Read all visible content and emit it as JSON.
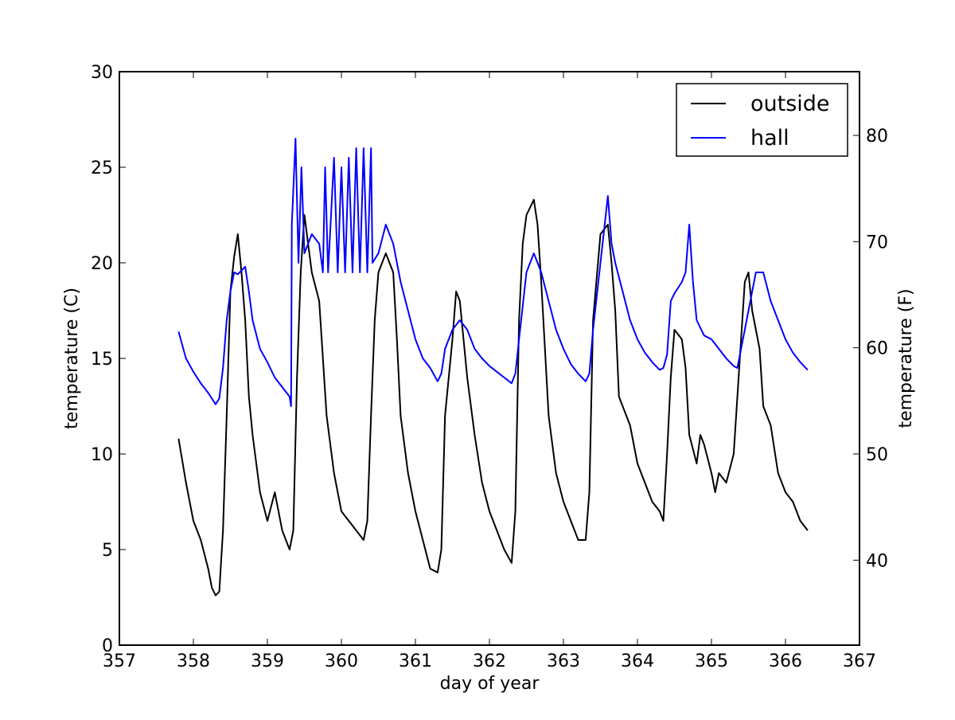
{
  "chart_data": {
    "type": "line",
    "xlabel": "day of year",
    "ylabel": "temperature (C)",
    "y2label": "temperature (F)",
    "xlim": [
      357,
      367
    ],
    "xticks": [
      357,
      358,
      359,
      360,
      361,
      362,
      363,
      364,
      365,
      366,
      367
    ],
    "ylim": [
      0,
      30
    ],
    "yticks": [
      0,
      5,
      10,
      15,
      20,
      25,
      30
    ],
    "y2lim": [
      32,
      86
    ],
    "y2ticks": [
      40,
      50,
      60,
      70,
      80
    ],
    "legend": "upper right",
    "grid": false,
    "series": [
      {
        "name": "outside",
        "color": "#000000",
        "x": [
          357.8,
          357.9,
          358.0,
          358.1,
          358.2,
          358.25,
          358.3,
          358.35,
          358.4,
          358.45,
          358.5,
          358.55,
          358.6,
          358.65,
          358.7,
          358.75,
          358.8,
          358.9,
          359.0,
          359.1,
          359.2,
          359.3,
          359.35,
          359.4,
          359.45,
          359.5,
          359.55,
          359.6,
          359.7,
          359.75,
          359.8,
          359.9,
          360.0,
          360.1,
          360.2,
          360.3,
          360.35,
          360.4,
          360.45,
          360.5,
          360.6,
          360.7,
          360.75,
          360.8,
          360.9,
          361.0,
          361.1,
          361.2,
          361.3,
          361.35,
          361.4,
          361.5,
          361.55,
          361.6,
          361.7,
          361.8,
          361.9,
          362.0,
          362.1,
          362.2,
          362.3,
          362.35,
          362.4,
          362.45,
          362.5,
          362.6,
          362.65,
          362.7,
          362.8,
          362.9,
          363.0,
          363.1,
          363.2,
          363.3,
          363.35,
          363.4,
          363.5,
          363.6,
          363.65,
          363.7,
          363.75,
          363.9,
          364.0,
          364.1,
          364.2,
          364.3,
          364.35,
          364.4,
          364.45,
          364.5,
          364.6,
          364.65,
          364.7,
          364.8,
          364.85,
          364.9,
          365.0,
          365.05,
          365.1,
          365.2,
          365.3,
          365.4,
          365.45,
          365.5,
          365.55,
          365.6,
          365.65,
          365.7,
          365.8,
          365.9,
          366.0,
          366.1,
          366.2,
          366.3
        ],
        "values": [
          10.8,
          8.5,
          6.5,
          5.5,
          4.0,
          3.0,
          2.6,
          2.8,
          6.0,
          12,
          18.5,
          20.3,
          21.5,
          19.5,
          17,
          13,
          11,
          8,
          6.5,
          8,
          6,
          5,
          6,
          14,
          19.5,
          22.5,
          21,
          19.5,
          18,
          15,
          12,
          9,
          7,
          6.5,
          6,
          5.5,
          6.5,
          12,
          17,
          19.5,
          20.5,
          19.5,
          16,
          12,
          9,
          7,
          5.5,
          4,
          3.8,
          5,
          12,
          16,
          18.5,
          18,
          14,
          11,
          8.5,
          7,
          6,
          5,
          4.3,
          7,
          17,
          21,
          22.5,
          23.3,
          22,
          19,
          12,
          9,
          7.5,
          6.5,
          5.5,
          5.5,
          8,
          17,
          21.5,
          22,
          20,
          17.5,
          13,
          11.5,
          9.5,
          8.5,
          7.5,
          7,
          6.5,
          10,
          14,
          16.5,
          16,
          14.5,
          11,
          9.5,
          11,
          10.5,
          9,
          8,
          9,
          8.5,
          10,
          16,
          19,
          19.5,
          17.5,
          16.5,
          15.5,
          12.5,
          11.5,
          9,
          8,
          7.5,
          6.5,
          6
        ]
      },
      {
        "name": "hall",
        "color": "#0000ff",
        "x": [
          357.8,
          357.9,
          358.0,
          358.1,
          358.2,
          358.3,
          358.35,
          358.4,
          358.45,
          358.5,
          358.55,
          358.6,
          358.7,
          358.75,
          358.8,
          358.9,
          359.0,
          359.1,
          359.2,
          359.3,
          359.32,
          359.33,
          359.38,
          359.42,
          359.46,
          359.5,
          359.6,
          359.7,
          359.75,
          359.78,
          359.82,
          359.9,
          359.95,
          360.0,
          360.05,
          360.1,
          360.15,
          360.2,
          360.25,
          360.3,
          360.35,
          360.4,
          360.42,
          360.5,
          360.6,
          360.7,
          360.8,
          360.9,
          361.0,
          361.1,
          361.2,
          361.3,
          361.35,
          361.4,
          361.5,
          361.6,
          361.7,
          361.8,
          361.9,
          362.0,
          362.1,
          362.2,
          362.3,
          362.35,
          362.4,
          362.5,
          362.6,
          362.7,
          362.8,
          362.9,
          363.0,
          363.1,
          363.2,
          363.3,
          363.35,
          363.4,
          363.5,
          363.6,
          363.65,
          363.7,
          363.8,
          363.9,
          364.0,
          364.1,
          364.2,
          364.3,
          364.35,
          364.4,
          364.45,
          364.5,
          364.6,
          364.65,
          364.7,
          364.75,
          364.8,
          364.9,
          365.0,
          365.1,
          365.2,
          365.3,
          365.35,
          365.4,
          365.5,
          365.6,
          365.7,
          365.8,
          365.9,
          366.0,
          366.1,
          366.2,
          366.3
        ],
        "values": [
          16.4,
          15,
          14.3,
          13.7,
          13.2,
          12.6,
          12.9,
          14.5,
          17,
          18.5,
          19.5,
          19.4,
          19.8,
          18.5,
          17,
          15.5,
          14.8,
          14,
          13.5,
          13,
          12.5,
          22,
          26.5,
          20,
          25,
          20.5,
          21.5,
          21,
          19.5,
          25,
          19.5,
          25.5,
          19.5,
          25,
          19.5,
          25.5,
          19.5,
          26,
          19.5,
          26,
          19.5,
          26,
          20,
          20.5,
          22,
          21,
          19,
          17.5,
          16,
          15,
          14.5,
          13.8,
          14.2,
          15.5,
          16.5,
          17,
          16.5,
          15.5,
          15,
          14.6,
          14.3,
          14,
          13.7,
          14.2,
          16,
          19.5,
          20.5,
          19.5,
          18,
          16.5,
          15.5,
          14.7,
          14.2,
          13.8,
          14.2,
          16.5,
          20,
          23.5,
          21,
          20,
          18.5,
          17,
          16,
          15.3,
          14.8,
          14.4,
          14.5,
          15.2,
          18,
          18.4,
          19,
          19.5,
          22,
          19,
          17,
          16.2,
          16,
          15.5,
          15,
          14.6,
          14.5,
          15.5,
          17.5,
          19.5,
          19.5,
          18,
          17,
          16,
          15.3,
          14.8,
          14.4
        ]
      }
    ]
  }
}
